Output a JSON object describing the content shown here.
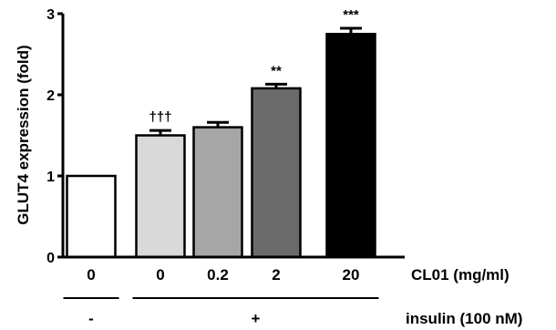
{
  "chart_data": {
    "type": "bar",
    "ylabel": "GLUT4 expression (fold)",
    "ylim": [
      0,
      3
    ],
    "yticks": [
      "0",
      "1",
      "2",
      "3"
    ],
    "categories": [
      "0",
      "0",
      "0.2",
      "2",
      "20"
    ],
    "values": [
      1.0,
      1.5,
      1.6,
      2.08,
      2.75
    ],
    "errors": [
      0.0,
      0.06,
      0.06,
      0.05,
      0.07
    ],
    "annotations": [
      "",
      "†††",
      "",
      "**",
      "***"
    ],
    "bar_colors": [
      "#ffffff",
      "#d9d9d9",
      "#a6a6a6",
      "#6b6b6b",
      "#000000"
    ],
    "xaxis_label": "CL01 (mg/ml)",
    "insulin": {
      "label": "insulin (100 nM)",
      "groups": [
        {
          "symbol": "-",
          "bars": [
            0,
            0
          ]
        },
        {
          "symbol": "+",
          "bars": [
            1,
            4
          ]
        }
      ]
    }
  }
}
